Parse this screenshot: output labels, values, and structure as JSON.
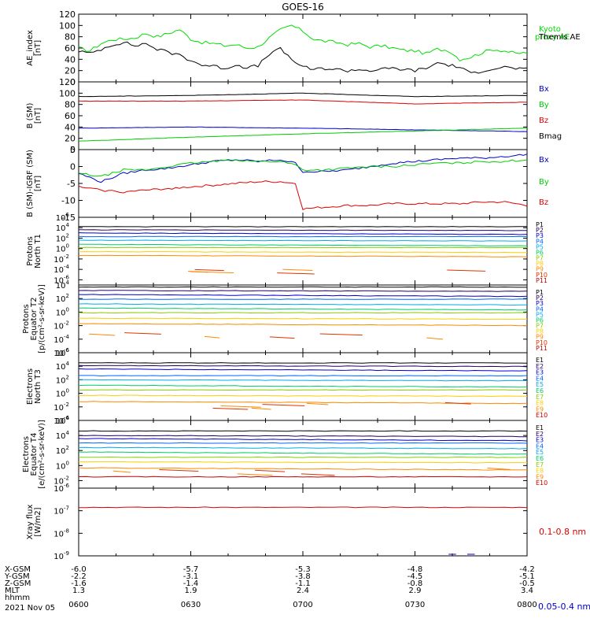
{
  "title": "GOES-16",
  "chart_data": [
    {
      "type": "line",
      "ylabel": [
        "AE_index",
        "[nT]"
      ],
      "ylim": [
        0,
        120
      ],
      "yticks": [
        0,
        20,
        40,
        60,
        80,
        100,
        120
      ],
      "log": false,
      "x": [
        0,
        3,
        6,
        9,
        12,
        15,
        18,
        21,
        24,
        27,
        30,
        33,
        36,
        39,
        42,
        45,
        48,
        51,
        54,
        57,
        60,
        63,
        66,
        69,
        72,
        75,
        78,
        81,
        84,
        87,
        90,
        93,
        96,
        99,
        102,
        105,
        108,
        111,
        114,
        117,
        120
      ],
      "series": [
        {
          "name": "Kyoto proxy AE",
          "color": "#00dd00",
          "values": [
            60,
            55,
            68,
            75,
            76,
            78,
            86,
            80,
            86,
            93,
            76,
            70,
            68,
            64,
            66,
            60,
            62,
            78,
            92,
            100,
            90,
            75,
            72,
            70,
            66,
            68,
            62,
            64,
            60,
            56,
            55,
            50,
            58,
            56,
            40,
            44,
            52,
            58,
            55,
            50,
            52
          ]
        },
        {
          "name": "Themis AE",
          "color": "#000000",
          "values": [
            55,
            50,
            58,
            66,
            70,
            64,
            68,
            58,
            52,
            48,
            38,
            30,
            28,
            24,
            30,
            26,
            28,
            50,
            58,
            40,
            26,
            22,
            24,
            22,
            20,
            22,
            20,
            22,
            24,
            22,
            20,
            24,
            34,
            30,
            26,
            14,
            20,
            24,
            26,
            24,
            22
          ]
        }
      ]
    },
    {
      "type": "line",
      "ylabel": [
        "B (SM)",
        "[nT]"
      ],
      "ylim": [
        0,
        120
      ],
      "yticks": [
        0,
        20,
        40,
        60,
        80,
        100,
        120
      ],
      "log": false,
      "x": [
        0,
        30,
        60,
        90,
        120
      ],
      "series": [
        {
          "name": "Bx",
          "color": "#0000cc",
          "values": [
            38,
            40,
            38,
            35,
            32
          ]
        },
        {
          "name": "By",
          "color": "#00cc00",
          "values": [
            15,
            22,
            28,
            33,
            38
          ]
        },
        {
          "name": "Bz",
          "color": "#dd0000",
          "values": [
            86,
            86,
            88,
            81,
            84
          ]
        },
        {
          "name": "Bmag",
          "color": "#000000",
          "values": [
            94,
            96,
            100,
            94,
            96
          ]
        }
      ]
    },
    {
      "type": "line",
      "ylabel": [
        "B (SM)-IGRF (SM)",
        "[nT]"
      ],
      "ylim": [
        -15,
        5
      ],
      "yticks": [
        -15,
        -10,
        -5,
        0,
        5
      ],
      "log": false,
      "x": [
        0,
        6,
        12,
        18,
        24,
        30,
        36,
        42,
        48,
        54,
        58,
        60,
        66,
        72,
        78,
        84,
        90,
        96,
        102,
        108,
        114,
        120
      ],
      "series": [
        {
          "name": "Bx",
          "color": "#0000cc",
          "values": [
            -2,
            -4.5,
            -2,
            -1,
            -0.5,
            0.5,
            1.5,
            2,
            1.5,
            2,
            1,
            -1.5,
            -1.5,
            -1,
            0,
            1,
            1.5,
            2,
            2.5,
            2.5,
            3,
            3.5
          ]
        },
        {
          "name": "By",
          "color": "#00cc00",
          "values": [
            -2,
            -3,
            -1,
            -1,
            0,
            1,
            1.5,
            2,
            1.5,
            1.5,
            0.5,
            -1,
            -1,
            -0.5,
            0,
            0,
            0.5,
            1,
            1,
            1.5,
            1.5,
            2
          ]
        },
        {
          "name": "Bz",
          "color": "#dd0000",
          "values": [
            -6,
            -7,
            -7.5,
            -7,
            -6.5,
            -6,
            -5.5,
            -5,
            -4.5,
            -4.5,
            -5,
            -12.5,
            -12,
            -11.5,
            -11.5,
            -11,
            -11,
            -11,
            -11,
            -10.5,
            -10.5,
            -11.5
          ]
        }
      ]
    },
    {
      "type": "line",
      "ylabel": [
        "Protons",
        "North T1"
      ],
      "ylim": [
        -7,
        6
      ],
      "ytick_exponents": [
        6,
        4,
        2,
        0,
        -2,
        -4,
        -6
      ],
      "log": true,
      "channels": [
        "P1",
        "P2",
        "P3",
        "P4",
        "P5",
        "P6",
        "P7",
        "P8",
        "P9",
        "P10",
        "P11"
      ],
      "channel_colors": [
        "#000000",
        "#220066",
        "#0000cc",
        "#0066ff",
        "#00aaee",
        "#00cc66",
        "#88cc00",
        "#ffcc00",
        "#ff8800",
        "#dd3300",
        "#cc0000"
      ],
      "levels": [
        4.2,
        3.6,
        3.0,
        2.3,
        1.6,
        0.8,
        0.2,
        -0.6,
        -1.3,
        null,
        null
      ]
    },
    {
      "type": "line",
      "ylabel": [
        "Protons",
        "Equator T2",
        "[p/(cm²-s-sr-keV)]"
      ],
      "ylim": [
        -6,
        4
      ],
      "ytick_exponents": [
        4,
        2,
        0,
        -2,
        -4,
        -6
      ],
      "log": true,
      "channels": [
        "P1",
        "P2",
        "P3",
        "P4",
        "P5",
        "P6",
        "P7",
        "P8",
        "P9",
        "P10",
        "P11"
      ],
      "channel_colors": [
        "#000000",
        "#220066",
        "#0000cc",
        "#0066ff",
        "#00aaee",
        "#00cc66",
        "#88cc00",
        "#ffcc00",
        "#ff8800",
        "#dd3300",
        "#cc0000"
      ],
      "levels": [
        3.7,
        3.2,
        2.6,
        1.9,
        1.2,
        0.6,
        -0.1,
        -0.9,
        -1.7,
        null,
        null
      ]
    },
    {
      "type": "line",
      "ylabel": [
        "Electrons",
        "North T3"
      ],
      "ylim": [
        -4,
        6
      ],
      "ytick_exponents": [
        6,
        4,
        2,
        0,
        -2,
        -4
      ],
      "log": true,
      "channels": [
        "E1",
        "E2",
        "E3",
        "E4",
        "E5",
        "E6",
        "E7",
        "E8",
        "E9",
        "E10"
      ],
      "channel_colors": [
        "#000000",
        "#220066",
        "#0000cc",
        "#0066ff",
        "#00aaee",
        "#00cc66",
        "#88cc00",
        "#ffcc00",
        "#ff8800",
        "#cc0000"
      ],
      "levels": [
        4.5,
        4.1,
        3.6,
        2.6,
        2.0,
        1.2,
        0.5,
        -0.3,
        -1.2,
        null
      ]
    },
    {
      "type": "line",
      "ylabel": [
        "Electrons",
        "Equator T4",
        "[e/(cm²-s-sr-keV)]"
      ],
      "ylim": [
        -3,
        6
      ],
      "ytick_exponents": [
        6,
        4,
        2,
        0,
        -2
      ],
      "log": true,
      "channels": [
        "E1",
        "E2",
        "E3",
        "E4",
        "E5",
        "E6",
        "E7",
        "E8",
        "E9",
        "E10"
      ],
      "channel_colors": [
        "#000000",
        "#220066",
        "#0000cc",
        "#0066ff",
        "#00aaee",
        "#00cc66",
        "#88cc00",
        "#ffcc00",
        "#ff8800",
        "#cc0000"
      ],
      "levels": [
        4.6,
        4.0,
        3.6,
        3.0,
        2.4,
        1.8,
        1.1,
        0.5,
        -0.3,
        -1.5
      ]
    },
    {
      "type": "line",
      "ylabel": [
        "Xray flux",
        "[W/m2]"
      ],
      "ylim": [
        -9,
        -6
      ],
      "ytick_exponents": [
        -6,
        -7,
        -8,
        -9
      ],
      "log": true,
      "series": [
        {
          "name": "0.1-0.8 nm",
          "color": "#dd0000",
          "value": -6.85
        },
        {
          "name": "0.05-0.4 nm",
          "color": "#0000cc",
          "value": -9.0
        }
      ]
    }
  ],
  "x_axis": {
    "columns": [
      {
        "hhmm": "0600",
        "xgsm": "-6.0",
        "ygsm": "-2.2",
        "zgsm": "-1.6",
        "mlt": "1.3"
      },
      {
        "hhmm": "0630",
        "xgsm": "-5.7",
        "ygsm": "-3.1",
        "zgsm": "-1.4",
        "mlt": "1.9"
      },
      {
        "hhmm": "0700",
        "xgsm": "-5.3",
        "ygsm": "-3.8",
        "zgsm": "-1.1",
        "mlt": "2.4"
      },
      {
        "hhmm": "0730",
        "xgsm": "-4.8",
        "ygsm": "-4.5",
        "zgsm": "-0.8",
        "mlt": "2.9"
      },
      {
        "hhmm": "0800",
        "xgsm": "-4.2",
        "ygsm": "-5.1",
        "zgsm": "-0.5",
        "mlt": "3.4"
      }
    ],
    "row_labels": [
      "X-GSM",
      "Y-GSM",
      "Z-GSM",
      "MLT",
      "hhmm"
    ],
    "date": "2021 Nov 05"
  }
}
